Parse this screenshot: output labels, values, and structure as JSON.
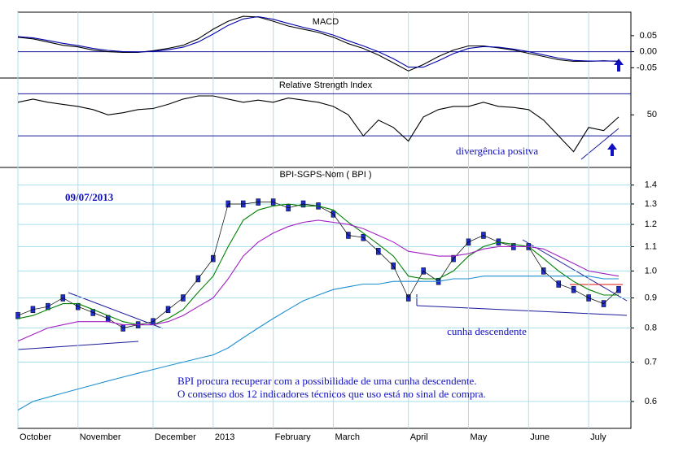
{
  "chart_data": [
    {
      "type": "line",
      "title": "MACD",
      "ylim": [
        -0.082,
        0.123
      ],
      "yticks": [
        {
          "value": 0.05,
          "label": "0.05"
        },
        {
          "value": 0,
          "label": "0.00"
        },
        {
          "value": -0.05,
          "label": "-0.05"
        }
      ],
      "levels": [
        0
      ],
      "series": [
        {
          "color": "#000000",
          "values": [
            0.045,
            0.04,
            0.03,
            0.02,
            0.015,
            0.005,
            0.0,
            -0.002,
            -0.002,
            0.003,
            0.01,
            0.02,
            0.04,
            0.07,
            0.095,
            0.11,
            0.108,
            0.095,
            0.08,
            0.07,
            0.06,
            0.045,
            0.025,
            0.01,
            -0.01,
            -0.035,
            -0.06,
            -0.04,
            -0.015,
            0.005,
            0.018,
            0.018,
            0.012,
            0.005,
            -0.005,
            -0.015,
            -0.025,
            -0.03,
            -0.03,
            -0.028,
            -0.03
          ]
        },
        {
          "color": "#0000aa",
          "values": [
            0.047,
            0.043,
            0.035,
            0.026,
            0.019,
            0.01,
            0.004,
            0.0,
            -0.001,
            0.001,
            0.006,
            0.014,
            0.03,
            0.055,
            0.082,
            0.102,
            0.109,
            0.101,
            0.088,
            0.076,
            0.065,
            0.052,
            0.034,
            0.018,
            0.0,
            -0.022,
            -0.048,
            -0.048,
            -0.028,
            -0.006,
            0.01,
            0.016,
            0.014,
            0.008,
            0.0,
            -0.01,
            -0.02,
            -0.027,
            -0.029,
            -0.029,
            -0.029
          ]
        }
      ]
    },
    {
      "type": "line",
      "title": "Relative Strength Index",
      "ylim": [
        0,
        85
      ],
      "yticks": [
        50
      ],
      "levels": [
        30,
        70
      ],
      "annotations": [
        "divergência positva"
      ],
      "series": [
        {
          "color": "#000000",
          "values": [
            62,
            65,
            62,
            60,
            58,
            55,
            50,
            52,
            55,
            56,
            60,
            65,
            68,
            68,
            65,
            62,
            64,
            62,
            66,
            64,
            62,
            58,
            50,
            30,
            45,
            38,
            25,
            48,
            55,
            58,
            58,
            62,
            58,
            57,
            55,
            45,
            30,
            15,
            38,
            35,
            48
          ]
        }
      ]
    },
    {
      "type": "line",
      "title": "BPI-SGPS-Nom ( BPI )",
      "log_scale": true,
      "grid": true,
      "ylim": [
        0.54,
        1.5
      ],
      "yticks": [
        0.6,
        0.7,
        0.8,
        0.9,
        {
          "value": 1,
          "label": "1.0"
        },
        1.1,
        1.2,
        1.3,
        1.4
      ],
      "annotations": [
        "09/07/2013",
        "cunha descendente",
        "BPI procura recuperar com a possibilidade de uma cunha descendente.",
        "O consenso dos 12 indicadores técnicos que uso está no sinal de compra."
      ],
      "categories": [
        "October",
        null,
        null,
        null,
        "November",
        null,
        null,
        null,
        null,
        "December",
        null,
        null,
        null,
        "2013",
        null,
        null,
        null,
        "February",
        null,
        null,
        null,
        "March",
        null,
        null,
        null,
        null,
        "April",
        null,
        null,
        null,
        "May",
        null,
        null,
        null,
        "June",
        null,
        null,
        null,
        "July",
        null,
        null
      ],
      "series": [
        {
          "color": "#1f2fd0",
          "markers": true,
          "values": [
            0.84,
            0.86,
            0.87,
            0.9,
            0.87,
            0.85,
            0.83,
            0.8,
            0.81,
            0.82,
            0.86,
            0.9,
            0.97,
            1.05,
            1.3,
            1.3,
            1.31,
            1.31,
            1.28,
            1.3,
            1.29,
            1.25,
            1.15,
            1.14,
            1.08,
            1.02,
            0.9,
            1.0,
            0.96,
            1.05,
            1.12,
            1.15,
            1.12,
            1.1,
            1.1,
            1.0,
            0.95,
            0.93,
            0.9,
            0.88,
            0.93
          ]
        },
        {
          "color": "#008000",
          "values": [
            0.83,
            0.84,
            0.86,
            0.88,
            0.88,
            0.86,
            0.84,
            0.82,
            0.81,
            0.81,
            0.83,
            0.86,
            0.92,
            0.98,
            1.1,
            1.22,
            1.27,
            1.29,
            1.3,
            1.29,
            1.29,
            1.27,
            1.21,
            1.16,
            1.11,
            1.06,
            0.98,
            0.97,
            0.97,
            1.0,
            1.06,
            1.1,
            1.12,
            1.11,
            1.1,
            1.05,
            1.0,
            0.96,
            0.93,
            0.91,
            0.91
          ]
        },
        {
          "color": "#a020c0",
          "values": [
            0.76,
            0.78,
            0.8,
            0.81,
            0.82,
            0.82,
            0.82,
            0.81,
            0.81,
            0.81,
            0.82,
            0.84,
            0.87,
            0.9,
            0.97,
            1.06,
            1.12,
            1.16,
            1.19,
            1.21,
            1.22,
            1.21,
            1.2,
            1.18,
            1.15,
            1.12,
            1.08,
            1.07,
            1.06,
            1.06,
            1.07,
            1.09,
            1.1,
            1.1,
            1.1,
            1.09,
            1.06,
            1.03,
            1.0,
            0.99,
            0.98
          ]
        },
        {
          "color": "#1e8fd0",
          "values": [
            0.58,
            0.6,
            0.61,
            0.62,
            0.63,
            0.64,
            0.65,
            0.66,
            0.67,
            0.68,
            0.69,
            0.7,
            0.71,
            0.72,
            0.74,
            0.77,
            0.8,
            0.83,
            0.86,
            0.89,
            0.91,
            0.93,
            0.94,
            0.95,
            0.95,
            0.96,
            0.96,
            0.96,
            0.96,
            0.97,
            0.97,
            0.98,
            0.98,
            0.98,
            0.98,
            0.98,
            0.98,
            0.98,
            0.98,
            0.97,
            0.97
          ]
        }
      ]
    }
  ]
}
